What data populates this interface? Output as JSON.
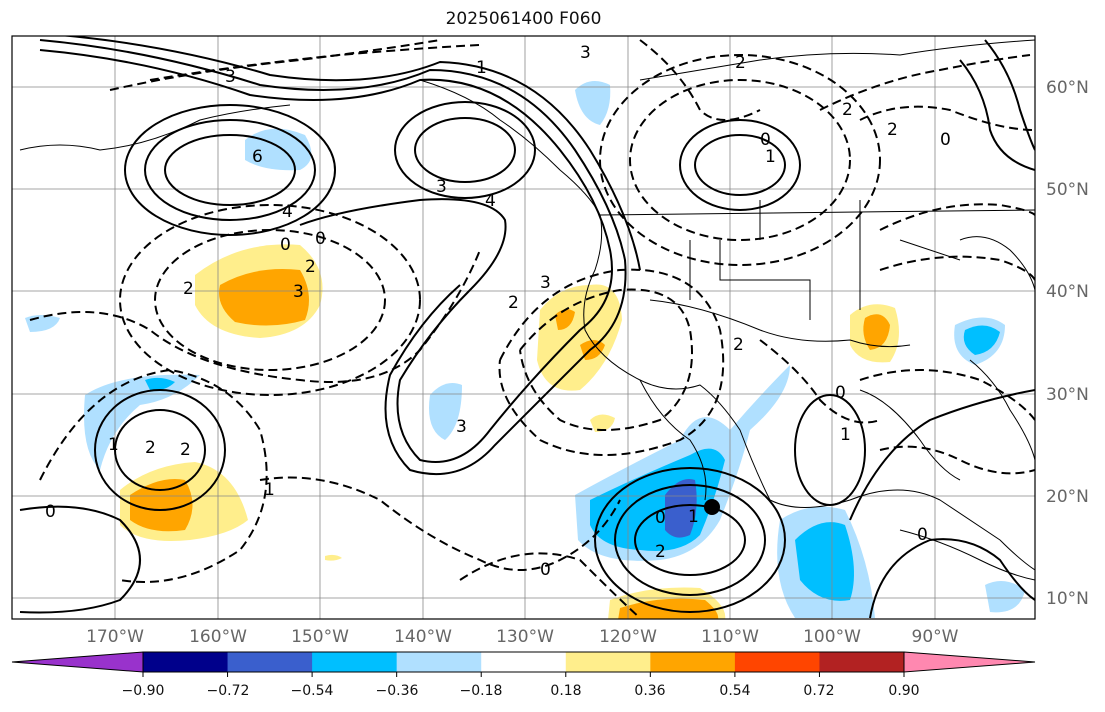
{
  "title": "2025061400 F060",
  "lon_labels": [
    "170°W",
    "160°W",
    "150°W",
    "140°W",
    "130°W",
    "120°W",
    "110°W",
    "100°W",
    "90°W"
  ],
  "lat_labels": [
    "60°N",
    "50°N",
    "40°N",
    "30°N",
    "20°N",
    "10°N"
  ],
  "colorbar": {
    "colors": [
      "#9932cc",
      "#00008b",
      "#3a5fcd",
      "#00bfff",
      "#b0e0ff",
      "#ffffff",
      "#ffee8c",
      "#ffa500",
      "#ff4500",
      "#b22222",
      "#ff88b0"
    ],
    "ticks": [
      "−0.90",
      "−0.72",
      "−0.54",
      "−0.36",
      "−0.18",
      "0.18",
      "0.36",
      "0.54",
      "0.72",
      "0.90"
    ]
  },
  "contour_labels": {
    "solid": [
      "6",
      "4",
      "3",
      "4",
      "2",
      "0",
      "1",
      "0",
      "1",
      "2",
      "0",
      "1",
      "2",
      "0",
      "1",
      "0",
      "2",
      "3"
    ],
    "dashed": [
      "2",
      "3",
      "2",
      "0",
      "3",
      "2",
      "3",
      "3",
      "2",
      "1",
      "2",
      "0",
      "1",
      "0",
      "2",
      "0"
    ]
  }
}
